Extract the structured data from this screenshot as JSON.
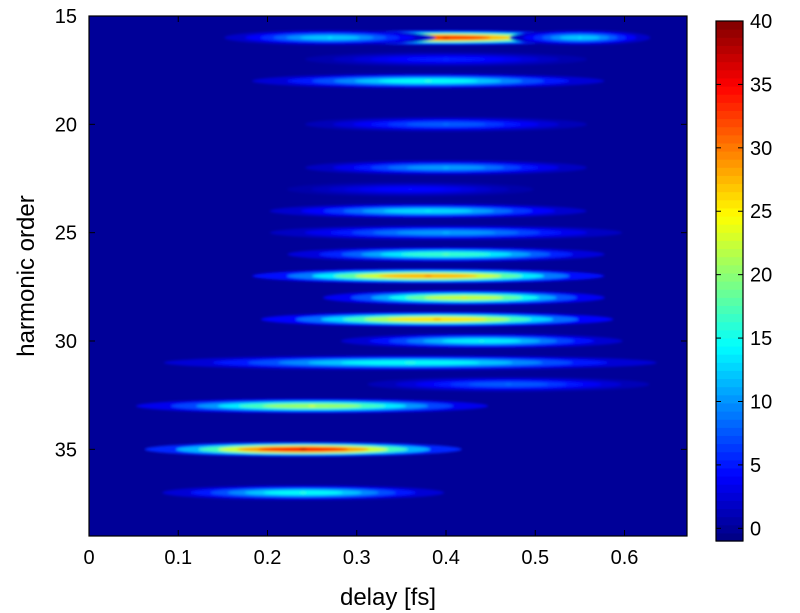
{
  "chart_data": {
    "type": "heatmap",
    "title": "",
    "xlabel": "delay [fs]",
    "ylabel": "harmonic order",
    "xlim": [
      0,
      0.67
    ],
    "ylim": [
      15,
      39
    ],
    "y_reversed": true,
    "x_ticks": [
      "0",
      "0.1",
      "0.2",
      "0.3",
      "0.4",
      "0.5",
      "0.6"
    ],
    "y_ticks": [
      "15",
      "20",
      "25",
      "30",
      "35"
    ],
    "colormap": "jet",
    "colorbar": {
      "min": -1,
      "max": 40,
      "ticks": [
        "0",
        "5",
        "10",
        "15",
        "20",
        "25",
        "30",
        "35",
        "40"
      ]
    },
    "background_value": 0,
    "bands": [
      {
        "harmonic": 16,
        "peaks": [
          {
            "delay": 0.4,
            "intensity": 38,
            "width": 0.09
          },
          {
            "delay": 0.27,
            "intensity": 14,
            "width": 0.06
          },
          {
            "delay": 0.55,
            "intensity": 14,
            "width": 0.04
          }
        ]
      },
      {
        "harmonic": 17,
        "peaks": [
          {
            "delay": 0.4,
            "intensity": 6,
            "width": 0.08
          }
        ]
      },
      {
        "harmonic": 18,
        "peaks": [
          {
            "delay": 0.38,
            "intensity": 17,
            "width": 0.1
          }
        ]
      },
      {
        "harmonic": 20,
        "peaks": [
          {
            "delay": 0.4,
            "intensity": 9,
            "width": 0.08
          }
        ]
      },
      {
        "harmonic": 22,
        "peaks": [
          {
            "delay": 0.4,
            "intensity": 12,
            "width": 0.08
          }
        ]
      },
      {
        "harmonic": 23,
        "peaks": [
          {
            "delay": 0.36,
            "intensity": 5,
            "width": 0.07
          }
        ]
      },
      {
        "harmonic": 24,
        "peaks": [
          {
            "delay": 0.38,
            "intensity": 15,
            "width": 0.09
          }
        ]
      },
      {
        "harmonic": 25,
        "peaks": [
          {
            "delay": 0.4,
            "intensity": 12,
            "width": 0.1
          }
        ]
      },
      {
        "harmonic": 26,
        "peaks": [
          {
            "delay": 0.4,
            "intensity": 19,
            "width": 0.09
          }
        ]
      },
      {
        "harmonic": 27,
        "peaks": [
          {
            "delay": 0.38,
            "intensity": 32,
            "width": 0.1
          }
        ]
      },
      {
        "harmonic": 28,
        "peaks": [
          {
            "delay": 0.42,
            "intensity": 26,
            "width": 0.08
          }
        ]
      },
      {
        "harmonic": 29,
        "peaks": [
          {
            "delay": 0.39,
            "intensity": 30,
            "width": 0.1
          }
        ]
      },
      {
        "harmonic": 30,
        "peaks": [
          {
            "delay": 0.44,
            "intensity": 16,
            "width": 0.08
          }
        ]
      },
      {
        "harmonic": 31,
        "peaks": [
          {
            "delay": 0.36,
            "intensity": 17,
            "width": 0.14
          }
        ]
      },
      {
        "harmonic": 32,
        "peaks": [
          {
            "delay": 0.47,
            "intensity": 9,
            "width": 0.08
          }
        ]
      },
      {
        "harmonic": 33,
        "peaks": [
          {
            "delay": 0.25,
            "intensity": 24,
            "width": 0.1
          }
        ]
      },
      {
        "harmonic": 35,
        "peaks": [
          {
            "delay": 0.24,
            "intensity": 40,
            "width": 0.09
          }
        ]
      },
      {
        "harmonic": 37,
        "peaks": [
          {
            "delay": 0.24,
            "intensity": 17,
            "width": 0.08
          }
        ]
      }
    ]
  }
}
